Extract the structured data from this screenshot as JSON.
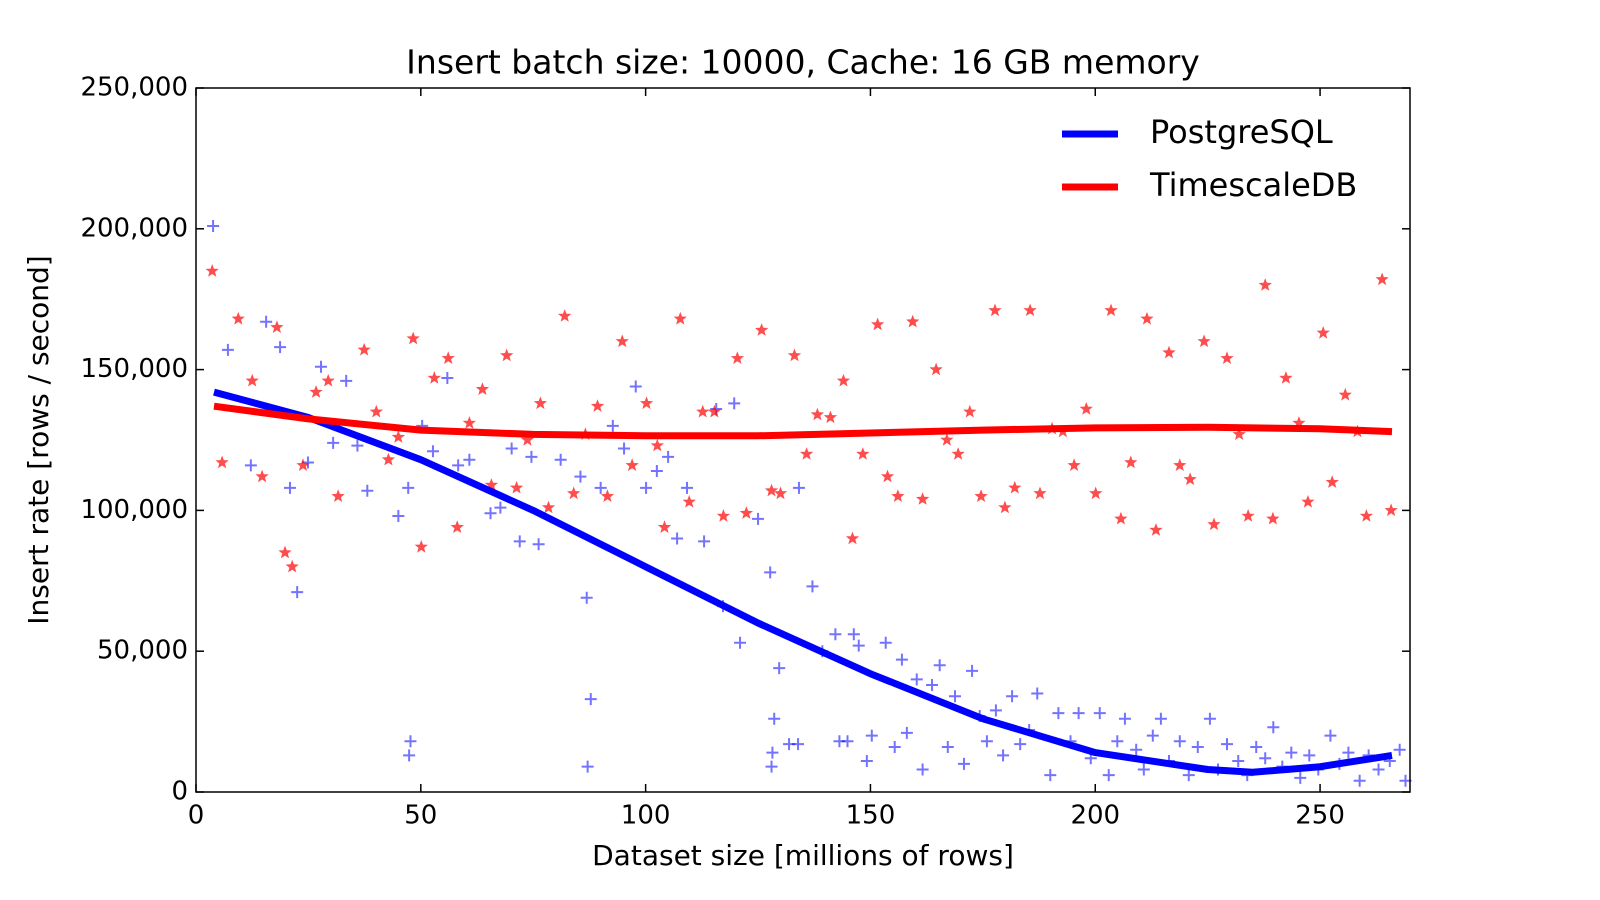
{
  "chart_data": {
    "type": "scatter-fit",
    "title": "Insert batch size: 10000,  Cache: 16 GB memory",
    "x_label": "Dataset size [millions of rows]",
    "y_label": "Insert rate [rows / second]",
    "xlim": [
      0,
      270
    ],
    "ylim": [
      0,
      250000
    ],
    "xticks": [
      0,
      50,
      100,
      150,
      200,
      250
    ],
    "yticks": [
      0,
      {
        "value": 50000,
        "label": "50,000"
      },
      {
        "value": 100000,
        "label": "100,000"
      },
      {
        "value": 150000,
        "label": "150,000"
      },
      {
        "value": 200000,
        "label": "200,000"
      },
      {
        "value": 250000,
        "label": "250,000"
      }
    ],
    "legend": "upper right",
    "series": [
      {
        "name": "PostgreSQL",
        "color": "#0000ff",
        "marker": "plus",
        "x": [
          4,
          25,
          50,
          75,
          100,
          125,
          150,
          175,
          200,
          225,
          235,
          250,
          266
        ],
        "values": [
          142000,
          133000,
          118000,
          100000,
          80000,
          60000,
          42000,
          26000,
          14000,
          8000,
          7000,
          9000,
          13000
        ],
        "scatter_x": [
          3.8,
          7.1,
          12.2,
          15.6,
          18.7,
          20.9,
          22.5,
          24.9,
          27.8,
          30.5,
          33.4,
          35.9,
          38.1,
          45,
          47.2,
          47.7,
          47.4,
          50.3,
          52.7,
          55.9,
          58.3,
          60.8,
          65.5,
          67.7,
          70.2,
          72,
          74.6,
          76.2,
          81.1,
          85.5,
          86.9,
          87.1,
          87.8,
          90,
          92.7,
          95.2,
          97.8,
          100.1,
          102.5,
          105,
          107,
          109.2,
          113,
          115.7,
          117.2,
          119.7,
          121,
          125,
          127.7,
          128,
          128.2,
          128.6,
          129.7,
          131.9,
          133.9,
          134.1,
          137.1,
          139.3,
          142.2,
          143.1,
          144.9,
          146.3,
          147.4,
          149.2,
          150.3,
          153.4,
          155.4,
          157,
          158.1,
          160.3,
          161.6,
          163.7,
          165.4,
          167.2,
          168.8,
          170.8,
          172.6,
          174.3,
          175.9,
          177.9,
          179.5,
          181.5,
          183.3,
          185.3,
          187.1,
          190,
          191.8,
          194.5,
          196.3,
          199,
          201,
          203,
          204.9,
          206.6,
          209.1,
          210.8,
          212.8,
          214.6,
          216.4,
          218.8,
          220.8,
          222.8,
          225.5,
          227.3,
          229.3,
          231.8,
          233.8,
          235.8,
          237.8,
          239.6,
          241.6,
          243.6,
          245.6,
          247.6,
          249.6,
          252.3,
          254.3,
          256.3,
          258.8,
          260.8,
          263,
          265.5,
          267.7,
          269
        ],
        "scatter_values": [
          201000,
          157000,
          116000,
          167000,
          158000,
          108000,
          71000,
          117000,
          151000,
          124000,
          146000,
          123000,
          107000,
          98000,
          108000,
          18000,
          13000,
          130000,
          121000,
          147000,
          116000,
          118000,
          99000,
          101000,
          122000,
          89000,
          119000,
          88000,
          118000,
          112000,
          69000,
          9000,
          33000,
          108000,
          130000,
          122000,
          144000,
          108000,
          114000,
          119000,
          90000,
          108000,
          89000,
          136000,
          66000,
          138000,
          53000,
          97000,
          78000,
          9000,
          14000,
          26000,
          44000,
          17000,
          17000,
          108000,
          73000,
          50000,
          56000,
          18000,
          18000,
          56000,
          52000,
          11000,
          20000,
          53000,
          16000,
          47000,
          21000,
          40000,
          8000,
          38000,
          45000,
          16000,
          34000,
          10000,
          43000,
          27000,
          18000,
          29000,
          13000,
          34000,
          17000,
          22000,
          35000,
          6000,
          28000,
          18000,
          28000,
          12000,
          28000,
          6000,
          18000,
          26000,
          15000,
          8000,
          20000,
          26000,
          11000,
          18000,
          6000,
          16000,
          26000,
          8000,
          17000,
          11000,
          6000,
          16000,
          12000,
          23000,
          9000,
          14000,
          5000,
          13000,
          8000,
          20000,
          10000,
          14000,
          4000,
          13000,
          8000,
          11000,
          15000,
          4000
        ]
      },
      {
        "name": "TimescaleDB",
        "color": "#ff0000",
        "marker": "star",
        "x": [
          4,
          25,
          50,
          75,
          100,
          125,
          150,
          175,
          200,
          225,
          250,
          266
        ],
        "values": [
          137000,
          132500,
          128500,
          127000,
          126500,
          126500,
          127500,
          128500,
          129300,
          129500,
          129000,
          128000
        ],
        "scatter_x": [
          3.6,
          5.8,
          9.4,
          12.5,
          14.7,
          18,
          19.8,
          21.4,
          23.8,
          26.7,
          29.4,
          31.6,
          37.4,
          40.1,
          42.8,
          45,
          48.3,
          50.1,
          53,
          56.1,
          58.1,
          60.8,
          63.7,
          65.7,
          69.1,
          71.3,
          73.7,
          76.6,
          78.4,
          82,
          84,
          86.6,
          89.3,
          91.5,
          94.8,
          97,
          100.2,
          102.6,
          104.2,
          107.7,
          109.7,
          112.7,
          115.3,
          117.3,
          120.4,
          122.4,
          125.8,
          128,
          130,
          133.1,
          135.8,
          138.2,
          141.1,
          144,
          146,
          148.3,
          151.6,
          153.8,
          156.1,
          159.4,
          161.6,
          164.6,
          167,
          169.5,
          172.1,
          174.6,
          177.7,
          179.9,
          182.1,
          185.5,
          187.7,
          190.4,
          192.8,
          195.3,
          198,
          200.1,
          203.5,
          205.7,
          207.9,
          211.5,
          213.5,
          216.4,
          218.8,
          221.1,
          224.2,
          226.4,
          229.3,
          232,
          234,
          237.8,
          239.5,
          242.4,
          245.3,
          247.3,
          250.7,
          252.7,
          255.6,
          258.3,
          260.3,
          263.8,
          265.8
        ],
        "scatter_values": [
          185000,
          117000,
          168000,
          146000,
          112000,
          165000,
          85000,
          80000,
          116000,
          142000,
          146000,
          105000,
          157000,
          135000,
          118000,
          126000,
          161000,
          87000,
          147000,
          154000,
          94000,
          131000,
          143000,
          109000,
          155000,
          108000,
          125000,
          138000,
          101000,
          169000,
          106000,
          127000,
          137000,
          105000,
          160000,
          116000,
          138000,
          123000,
          94000,
          168000,
          103000,
          135000,
          135000,
          98000,
          154000,
          99000,
          164000,
          107000,
          106000,
          155000,
          120000,
          134000,
          133000,
          146000,
          90000,
          120000,
          166000,
          112000,
          105000,
          167000,
          104000,
          150000,
          125000,
          120000,
          135000,
          105000,
          171000,
          101000,
          108000,
          171000,
          106000,
          129000,
          128000,
          116000,
          136000,
          106000,
          171000,
          97000,
          117000,
          168000,
          93000,
          156000,
          116000,
          111000,
          160000,
          95000,
          154000,
          127000,
          98000,
          180000,
          97000,
          147000,
          131000,
          103000,
          163000,
          110000,
          141000,
          128000,
          98000,
          182000,
          100000
        ]
      }
    ]
  }
}
